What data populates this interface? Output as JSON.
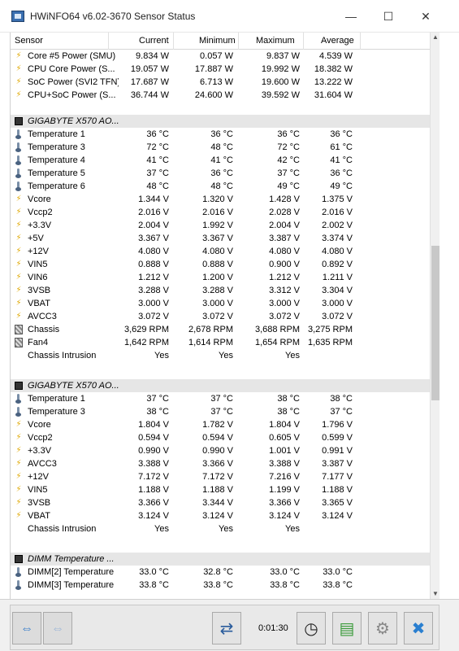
{
  "window": {
    "title": "HWiNFO64 v6.02-3670 Sensor Status",
    "min": "—",
    "max": "☐",
    "close": "✕"
  },
  "columns": [
    "Sensor",
    "Current",
    "Minimum",
    "Maximum",
    "Average"
  ],
  "groups": [
    {
      "title": "",
      "rows": [
        {
          "icon": "power",
          "name": "Core #5 Power (SMU)",
          "cur": "9.834 W",
          "min": "0.057 W",
          "max": "9.837 W",
          "avg": "4.539 W"
        },
        {
          "icon": "power",
          "name": "CPU Core Power (S...",
          "cur": "19.057 W",
          "min": "17.887 W",
          "max": "19.992 W",
          "avg": "18.382 W"
        },
        {
          "icon": "power",
          "name": "SoC Power (SVI2 TFN)",
          "cur": "17.687 W",
          "min": "6.713 W",
          "max": "19.600 W",
          "avg": "13.222 W"
        },
        {
          "icon": "power",
          "name": "CPU+SoC Power (S...",
          "cur": "36.744 W",
          "min": "24.600 W",
          "max": "39.592 W",
          "avg": "31.604 W"
        }
      ]
    },
    {
      "title": "GIGABYTE X570 AO...",
      "rows": [
        {
          "icon": "temp",
          "name": "Temperature 1",
          "cur": "36 °C",
          "min": "36 °C",
          "max": "36 °C",
          "avg": "36 °C"
        },
        {
          "icon": "temp",
          "name": "Temperature 3",
          "cur": "72 °C",
          "min": "48 °C",
          "max": "72 °C",
          "avg": "61 °C"
        },
        {
          "icon": "temp",
          "name": "Temperature 4",
          "cur": "41 °C",
          "min": "41 °C",
          "max": "42 °C",
          "avg": "41 °C"
        },
        {
          "icon": "temp",
          "name": "Temperature 5",
          "cur": "37 °C",
          "min": "36 °C",
          "max": "37 °C",
          "avg": "36 °C"
        },
        {
          "icon": "temp",
          "name": "Temperature 6",
          "cur": "48 °C",
          "min": "48 °C",
          "max": "49 °C",
          "avg": "49 °C"
        },
        {
          "icon": "power",
          "name": "Vcore",
          "cur": "1.344 V",
          "min": "1.320 V",
          "max": "1.428 V",
          "avg": "1.375 V"
        },
        {
          "icon": "power",
          "name": "Vccp2",
          "cur": "2.016 V",
          "min": "2.016 V",
          "max": "2.028 V",
          "avg": "2.016 V"
        },
        {
          "icon": "power",
          "name": "+3.3V",
          "cur": "2.004 V",
          "min": "1.992 V",
          "max": "2.004 V",
          "avg": "2.002 V"
        },
        {
          "icon": "power",
          "name": "+5V",
          "cur": "3.367 V",
          "min": "3.367 V",
          "max": "3.387 V",
          "avg": "3.374 V"
        },
        {
          "icon": "power",
          "name": "+12V",
          "cur": "4.080 V",
          "min": "4.080 V",
          "max": "4.080 V",
          "avg": "4.080 V"
        },
        {
          "icon": "power",
          "name": "VIN5",
          "cur": "0.888 V",
          "min": "0.888 V",
          "max": "0.900 V",
          "avg": "0.892 V"
        },
        {
          "icon": "power",
          "name": "VIN6",
          "cur": "1.212 V",
          "min": "1.200 V",
          "max": "1.212 V",
          "avg": "1.211 V"
        },
        {
          "icon": "power",
          "name": "3VSB",
          "cur": "3.288 V",
          "min": "3.288 V",
          "max": "3.312 V",
          "avg": "3.304 V"
        },
        {
          "icon": "power",
          "name": "VBAT",
          "cur": "3.000 V",
          "min": "3.000 V",
          "max": "3.000 V",
          "avg": "3.000 V"
        },
        {
          "icon": "power",
          "name": "AVCC3",
          "cur": "3.072 V",
          "min": "3.072 V",
          "max": "3.072 V",
          "avg": "3.072 V"
        },
        {
          "icon": "fan",
          "name": "Chassis",
          "cur": "3,629 RPM",
          "min": "2,678 RPM",
          "max": "3,688 RPM",
          "avg": "3,275 RPM"
        },
        {
          "icon": "fan",
          "name": "Fan4",
          "cur": "1,642 RPM",
          "min": "1,614 RPM",
          "max": "1,654 RPM",
          "avg": "1,635 RPM"
        },
        {
          "icon": "intrusion",
          "name": "Chassis Intrusion",
          "cur": "Yes",
          "min": "Yes",
          "max": "Yes",
          "avg": ""
        }
      ]
    },
    {
      "title": "GIGABYTE X570 AO...",
      "rows": [
        {
          "icon": "temp",
          "name": "Temperature 1",
          "cur": "37 °C",
          "min": "37 °C",
          "max": "38 °C",
          "avg": "38 °C"
        },
        {
          "icon": "temp",
          "name": "Temperature 3",
          "cur": "38 °C",
          "min": "37 °C",
          "max": "38 °C",
          "avg": "37 °C"
        },
        {
          "icon": "power",
          "name": "Vcore",
          "cur": "1.804 V",
          "min": "1.782 V",
          "max": "1.804 V",
          "avg": "1.796 V"
        },
        {
          "icon": "power",
          "name": "Vccp2",
          "cur": "0.594 V",
          "min": "0.594 V",
          "max": "0.605 V",
          "avg": "0.599 V"
        },
        {
          "icon": "power",
          "name": "+3.3V",
          "cur": "0.990 V",
          "min": "0.990 V",
          "max": "1.001 V",
          "avg": "0.991 V"
        },
        {
          "icon": "power",
          "name": "AVCC3",
          "cur": "3.388 V",
          "min": "3.366 V",
          "max": "3.388 V",
          "avg": "3.387 V"
        },
        {
          "icon": "power",
          "name": "+12V",
          "cur": "7.172 V",
          "min": "7.172 V",
          "max": "7.216 V",
          "avg": "7.177 V"
        },
        {
          "icon": "power",
          "name": "VIN5",
          "cur": "1.188 V",
          "min": "1.188 V",
          "max": "1.199 V",
          "avg": "1.188 V"
        },
        {
          "icon": "power",
          "name": "3VSB",
          "cur": "3.366 V",
          "min": "3.344 V",
          "max": "3.366 V",
          "avg": "3.365 V"
        },
        {
          "icon": "power",
          "name": "VBAT",
          "cur": "3.124 V",
          "min": "3.124 V",
          "max": "3.124 V",
          "avg": "3.124 V"
        },
        {
          "icon": "intrusion",
          "name": "Chassis Intrusion",
          "cur": "Yes",
          "min": "Yes",
          "max": "Yes",
          "avg": ""
        }
      ]
    },
    {
      "title": "DIMM Temperature ...",
      "rows": [
        {
          "icon": "temp",
          "name": "DIMM[2] Temperature",
          "cur": "33.0 °C",
          "min": "32.8 °C",
          "max": "33.0 °C",
          "avg": "33.0 °C"
        },
        {
          "icon": "temp",
          "name": "DIMM[3] Temperature",
          "cur": "33.8 °C",
          "min": "33.8 °C",
          "max": "33.8 °C",
          "avg": "33.8 °C"
        }
      ]
    }
  ],
  "statusbar": {
    "timer": "0:01:30"
  },
  "icons": {
    "power": "lightning-icon",
    "temp": "thermometer-icon",
    "fan": "fan-icon",
    "intrusion": "intrusion-icon"
  }
}
